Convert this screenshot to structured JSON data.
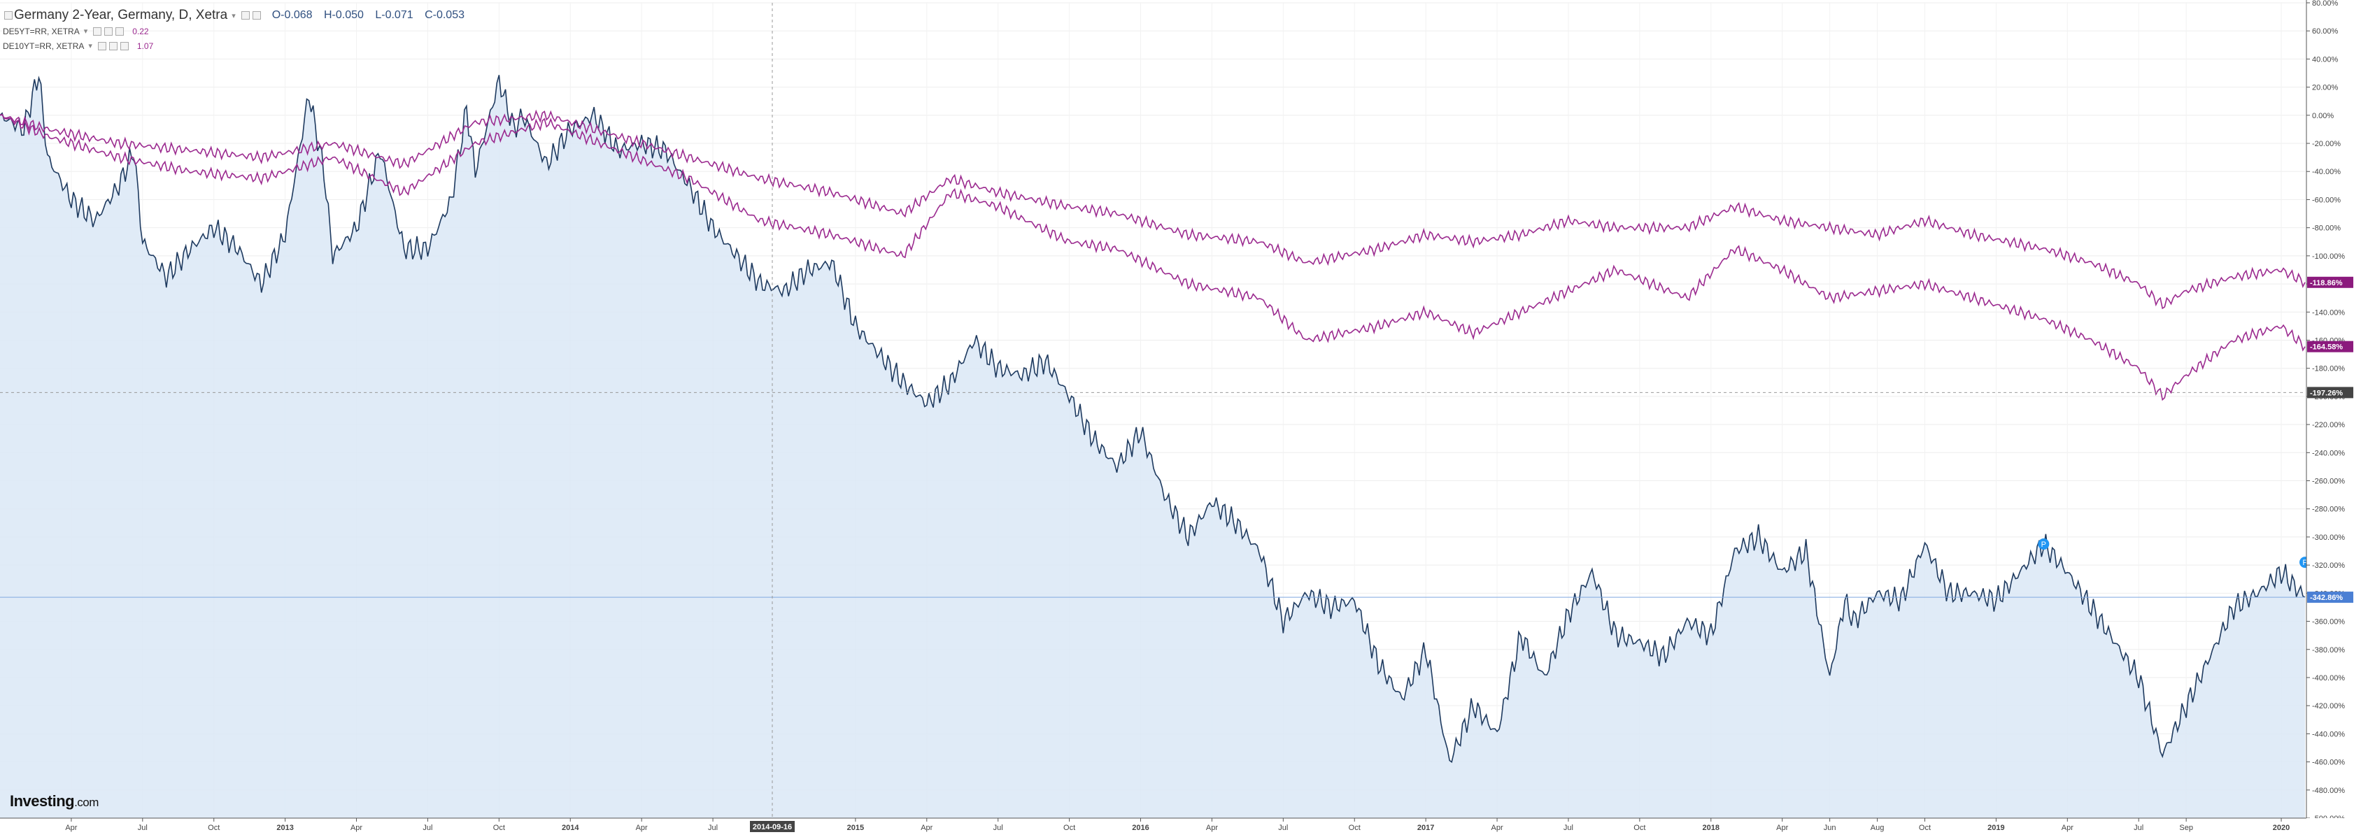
{
  "legend": {
    "main_series": "Germany 2-Year, Germany, D, Xetra",
    "ohlc": {
      "o": "O-0.068",
      "h": "H-0.050",
      "l": "L-0.071",
      "c": "C-0.053"
    },
    "comparisons": [
      {
        "name": "DE5YT=RR, XETRA",
        "value": "0.22",
        "color": "#9b2a8f"
      },
      {
        "name": "DE10YT=RR, XETRA",
        "value": "1.07",
        "color": "#9b2a8f"
      }
    ]
  },
  "watermark": {
    "brand": "Investing",
    "suffix": ".com"
  },
  "crosshair": {
    "date_label": "2014-09-16",
    "value_label": "-197.26%"
  },
  "chart_data": {
    "type": "area",
    "x_axis": {
      "tick_labels": [
        "Apr",
        "Jul",
        "Oct",
        "2013",
        "Apr",
        "Jul",
        "Oct",
        "2014",
        "Apr",
        "Jul",
        "2015",
        "Apr",
        "Jul",
        "Oct",
        "2016",
        "Apr",
        "Jul",
        "Oct",
        "2017",
        "Apr",
        "Jul",
        "Oct",
        "2018",
        "Apr",
        "Jun",
        "Aug",
        "Oct",
        "2019",
        "Apr",
        "Jul",
        "Sep",
        "2020"
      ],
      "tick_dates": [
        "2012-04",
        "2012-07",
        "2012-10",
        "2013-01",
        "2013-04",
        "2013-07",
        "2013-10",
        "2014-01",
        "2014-04",
        "2014-07",
        "2015-01",
        "2015-04",
        "2015-07",
        "2015-10",
        "2016-01",
        "2016-04",
        "2016-07",
        "2016-10",
        "2017-01",
        "2017-04",
        "2017-07",
        "2017-10",
        "2018-01",
        "2018-04",
        "2018-06",
        "2018-08",
        "2018-10",
        "2019-01",
        "2019-04",
        "2019-07",
        "2019-09",
        "2020-01"
      ],
      "start": "2012-01",
      "end": "2020-02"
    },
    "y_axis": {
      "unit": "%",
      "tick_labels": [
        "80.00%",
        "60.00%",
        "40.00%",
        "20.00%",
        "0.00%",
        "-20.00%",
        "-40.00%",
        "-60.00%",
        "-80.00%",
        "-100.00%",
        "-120.00%",
        "-140.00%",
        "-160.00%",
        "-180.00%",
        "-200.00%",
        "-220.00%",
        "-240.00%",
        "-260.00%",
        "-280.00%",
        "-300.00%",
        "-320.00%",
        "-340.00%",
        "-360.00%",
        "-380.00%",
        "-400.00%",
        "-420.00%",
        "-440.00%",
        "-460.00%",
        "-480.00%",
        "-500.00%"
      ],
      "ylim": [
        -500,
        80
      ],
      "position": "right"
    },
    "grid": true,
    "series": [
      {
        "name": "Germany 2-Year, Germany, D, Xetra",
        "style": "area",
        "line_color": "#1e3a5f",
        "fill_color": "#dbe8f6",
        "last_label": "-342.86%",
        "points": [
          [
            "2012-01",
            0
          ],
          [
            "2012-02",
            -10
          ],
          [
            "2012-02-20",
            30
          ],
          [
            "2012-03",
            -30
          ],
          [
            "2012-04",
            -60
          ],
          [
            "2012-05",
            -75
          ],
          [
            "2012-06",
            -50
          ],
          [
            "2012-06-20",
            -25
          ],
          [
            "2012-07",
            -90
          ],
          [
            "2012-08",
            -115
          ],
          [
            "2012-09",
            -95
          ],
          [
            "2012-10",
            -80
          ],
          [
            "2012-11",
            -95
          ],
          [
            "2012-12",
            -120
          ],
          [
            "2013-01",
            -85
          ],
          [
            "2013-02",
            15
          ],
          [
            "2013-02-20",
            -40
          ],
          [
            "2013-03",
            -100
          ],
          [
            "2013-04",
            -80
          ],
          [
            "2013-05",
            -25
          ],
          [
            "2013-05-20",
            -70
          ],
          [
            "2013-06",
            -95
          ],
          [
            "2013-07",
            -95
          ],
          [
            "2013-08",
            -60
          ],
          [
            "2013-08-20",
            5
          ],
          [
            "2013-09",
            -40
          ],
          [
            "2013-10",
            25
          ],
          [
            "2013-10-20",
            -10
          ],
          [
            "2013-11",
            0
          ],
          [
            "2013-12",
            -35
          ],
          [
            "2014-01",
            -10
          ],
          [
            "2014-02",
            0
          ],
          [
            "2014-03",
            -25
          ],
          [
            "2014-04",
            -20
          ],
          [
            "2014-05",
            -25
          ],
          [
            "2014-06",
            -50
          ],
          [
            "2014-07",
            -80
          ],
          [
            "2014-08",
            -100
          ],
          [
            "2014-09",
            -120
          ],
          [
            "2014-10",
            -125
          ],
          [
            "2014-11",
            -110
          ],
          [
            "2014-12",
            -105
          ],
          [
            "2015-01",
            -150
          ],
          [
            "2015-02",
            -170
          ],
          [
            "2015-03",
            -190
          ],
          [
            "2015-04",
            -205
          ],
          [
            "2015-05",
            -190
          ],
          [
            "2015-06",
            -160
          ],
          [
            "2015-07",
            -180
          ],
          [
            "2015-08",
            -185
          ],
          [
            "2015-09",
            -175
          ],
          [
            "2015-10",
            -200
          ],
          [
            "2015-11",
            -230
          ],
          [
            "2015-12",
            -250
          ],
          [
            "2016-01",
            -225
          ],
          [
            "2016-02",
            -270
          ],
          [
            "2016-03",
            -300
          ],
          [
            "2016-04",
            -275
          ],
          [
            "2016-05",
            -290
          ],
          [
            "2016-06",
            -310
          ],
          [
            "2016-07",
            -360
          ],
          [
            "2016-08",
            -340
          ],
          [
            "2016-09",
            -350
          ],
          [
            "2016-10",
            -345
          ],
          [
            "2016-11",
            -390
          ],
          [
            "2016-12",
            -415
          ],
          [
            "2017-01",
            -380
          ],
          [
            "2017-02",
            -460
          ],
          [
            "2017-03",
            -420
          ],
          [
            "2017-04",
            -440
          ],
          [
            "2017-05",
            -370
          ],
          [
            "2017-06",
            -400
          ],
          [
            "2017-07",
            -355
          ],
          [
            "2017-08",
            -325
          ],
          [
            "2017-09",
            -370
          ],
          [
            "2017-10",
            -375
          ],
          [
            "2017-11",
            -385
          ],
          [
            "2017-12",
            -360
          ],
          [
            "2018-01",
            -370
          ],
          [
            "2018-02",
            -310
          ],
          [
            "2018-03",
            -300
          ],
          [
            "2018-04",
            -325
          ],
          [
            "2018-05",
            -310
          ],
          [
            "2018-06",
            -400
          ],
          [
            "2018-06-20",
            -345
          ],
          [
            "2018-07",
            -360
          ],
          [
            "2018-08",
            -340
          ],
          [
            "2018-09",
            -345
          ],
          [
            "2018-10",
            -305
          ],
          [
            "2018-11",
            -340
          ],
          [
            "2018-12",
            -340
          ],
          [
            "2019-01",
            -345
          ],
          [
            "2019-02",
            -325
          ],
          [
            "2019-03",
            -305
          ],
          [
            "2019-04",
            -325
          ],
          [
            "2019-05",
            -350
          ],
          [
            "2019-06",
            -375
          ],
          [
            "2019-07",
            -400
          ],
          [
            "2019-08",
            -455
          ],
          [
            "2019-09",
            -420
          ],
          [
            "2019-10",
            -385
          ],
          [
            "2019-11",
            -350
          ],
          [
            "2019-12",
            -340
          ],
          [
            "2020-01",
            -325
          ],
          [
            "2020-02",
            -342.86
          ]
        ]
      },
      {
        "name": "DE5YT=RR, XETRA",
        "style": "line",
        "line_color": "#9b2a8f",
        "last_label": "-164.58%",
        "points": [
          [
            "2012-01",
            0
          ],
          [
            "2012-03",
            -15
          ],
          [
            "2012-06",
            -30
          ],
          [
            "2012-09",
            -40
          ],
          [
            "2012-12",
            -45
          ],
          [
            "2013-03",
            -30
          ],
          [
            "2013-06",
            -55
          ],
          [
            "2013-09",
            -20
          ],
          [
            "2013-12",
            -5
          ],
          [
            "2014-03",
            -25
          ],
          [
            "2014-06",
            -45
          ],
          [
            "2014-09",
            -75
          ],
          [
            "2014-12",
            -85
          ],
          [
            "2015-03",
            -100
          ],
          [
            "2015-05",
            -55
          ],
          [
            "2015-07",
            -65
          ],
          [
            "2015-10",
            -90
          ],
          [
            "2015-12",
            -95
          ],
          [
            "2016-03",
            -120
          ],
          [
            "2016-06",
            -130
          ],
          [
            "2016-08",
            -160
          ],
          [
            "2016-11",
            -150
          ],
          [
            "2017-01",
            -140
          ],
          [
            "2017-03",
            -155
          ],
          [
            "2017-05",
            -140
          ],
          [
            "2017-07",
            -125
          ],
          [
            "2017-09",
            -110
          ],
          [
            "2017-12",
            -130
          ],
          [
            "2018-02",
            -95
          ],
          [
            "2018-04",
            -110
          ],
          [
            "2018-06",
            -130
          ],
          [
            "2018-08",
            -125
          ],
          [
            "2018-10",
            -120
          ],
          [
            "2018-12",
            -130
          ],
          [
            "2019-03",
            -145
          ],
          [
            "2019-05",
            -160
          ],
          [
            "2019-07",
            -180
          ],
          [
            "2019-08",
            -200
          ],
          [
            "2019-09",
            -185
          ],
          [
            "2019-11",
            -160
          ],
          [
            "2020-01",
            -150
          ],
          [
            "2020-02",
            -164.58
          ]
        ]
      },
      {
        "name": "DE10YT=RR, XETRA",
        "style": "line",
        "line_color": "#9b2a8f",
        "last_label": "-118.86%",
        "points": [
          [
            "2012-01",
            0
          ],
          [
            "2012-03",
            -10
          ],
          [
            "2012-06",
            -20
          ],
          [
            "2012-09",
            -25
          ],
          [
            "2012-12",
            -30
          ],
          [
            "2013-03",
            -20
          ],
          [
            "2013-06",
            -35
          ],
          [
            "2013-09",
            -5
          ],
          [
            "2013-12",
            0
          ],
          [
            "2014-03",
            -15
          ],
          [
            "2014-06",
            -30
          ],
          [
            "2014-09",
            -45
          ],
          [
            "2014-12",
            -55
          ],
          [
            "2015-03",
            -70
          ],
          [
            "2015-05",
            -45
          ],
          [
            "2015-07",
            -55
          ],
          [
            "2015-10",
            -65
          ],
          [
            "2015-12",
            -70
          ],
          [
            "2016-03",
            -85
          ],
          [
            "2016-06",
            -90
          ],
          [
            "2016-08",
            -105
          ],
          [
            "2016-11",
            -95
          ],
          [
            "2017-01",
            -85
          ],
          [
            "2017-03",
            -90
          ],
          [
            "2017-05",
            -85
          ],
          [
            "2017-07",
            -75
          ],
          [
            "2017-09",
            -80
          ],
          [
            "2017-12",
            -80
          ],
          [
            "2018-02",
            -65
          ],
          [
            "2018-04",
            -75
          ],
          [
            "2018-06",
            -80
          ],
          [
            "2018-08",
            -85
          ],
          [
            "2018-10",
            -75
          ],
          [
            "2018-12",
            -85
          ],
          [
            "2019-03",
            -95
          ],
          [
            "2019-05",
            -105
          ],
          [
            "2019-07",
            -120
          ],
          [
            "2019-08",
            -135
          ],
          [
            "2019-09",
            -125
          ],
          [
            "2019-11",
            -115
          ],
          [
            "2020-01",
            -110
          ],
          [
            "2020-02",
            -118.86
          ]
        ]
      }
    ],
    "reference_lines": [
      {
        "kind": "crosshair-horizontal",
        "value": -197.26
      },
      {
        "kind": "last-price-line",
        "value": -342.86
      }
    ],
    "markers": [
      {
        "date": "2019-03",
        "value": -305,
        "label": "P"
      },
      {
        "date": "2020-02",
        "value": -318,
        "label": "P"
      }
    ]
  }
}
